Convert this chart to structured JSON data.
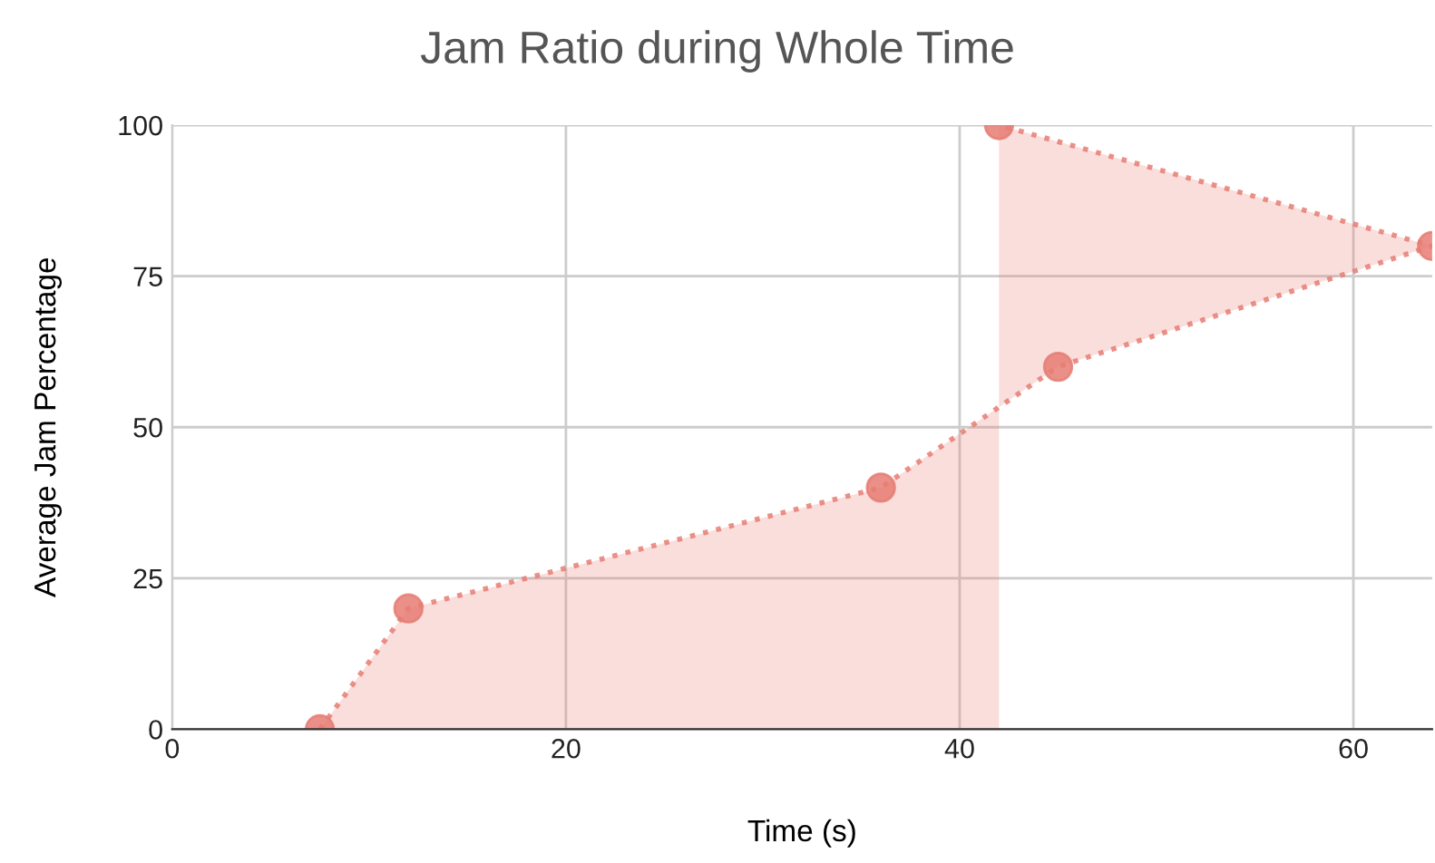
{
  "chart_data": {
    "type": "area",
    "title": "Jam Ratio during Whole Time",
    "xlabel": "Time (s)",
    "ylabel": "Average Jam Percentage",
    "series": [
      {
        "color": "#e67c73",
        "x": [
          7.5,
          12,
          36,
          45,
          64,
          42
        ],
        "values": [
          0,
          20,
          40,
          60,
          80,
          100
        ]
      }
    ],
    "xlim": [
      0,
      64
    ],
    "xticks": [
      0,
      20,
      40,
      60
    ],
    "ylim": [
      0,
      100
    ],
    "yticks": [
      0,
      25,
      50,
      75,
      100
    ],
    "grid": true,
    "marker": "circle",
    "line_style": "dotted"
  }
}
